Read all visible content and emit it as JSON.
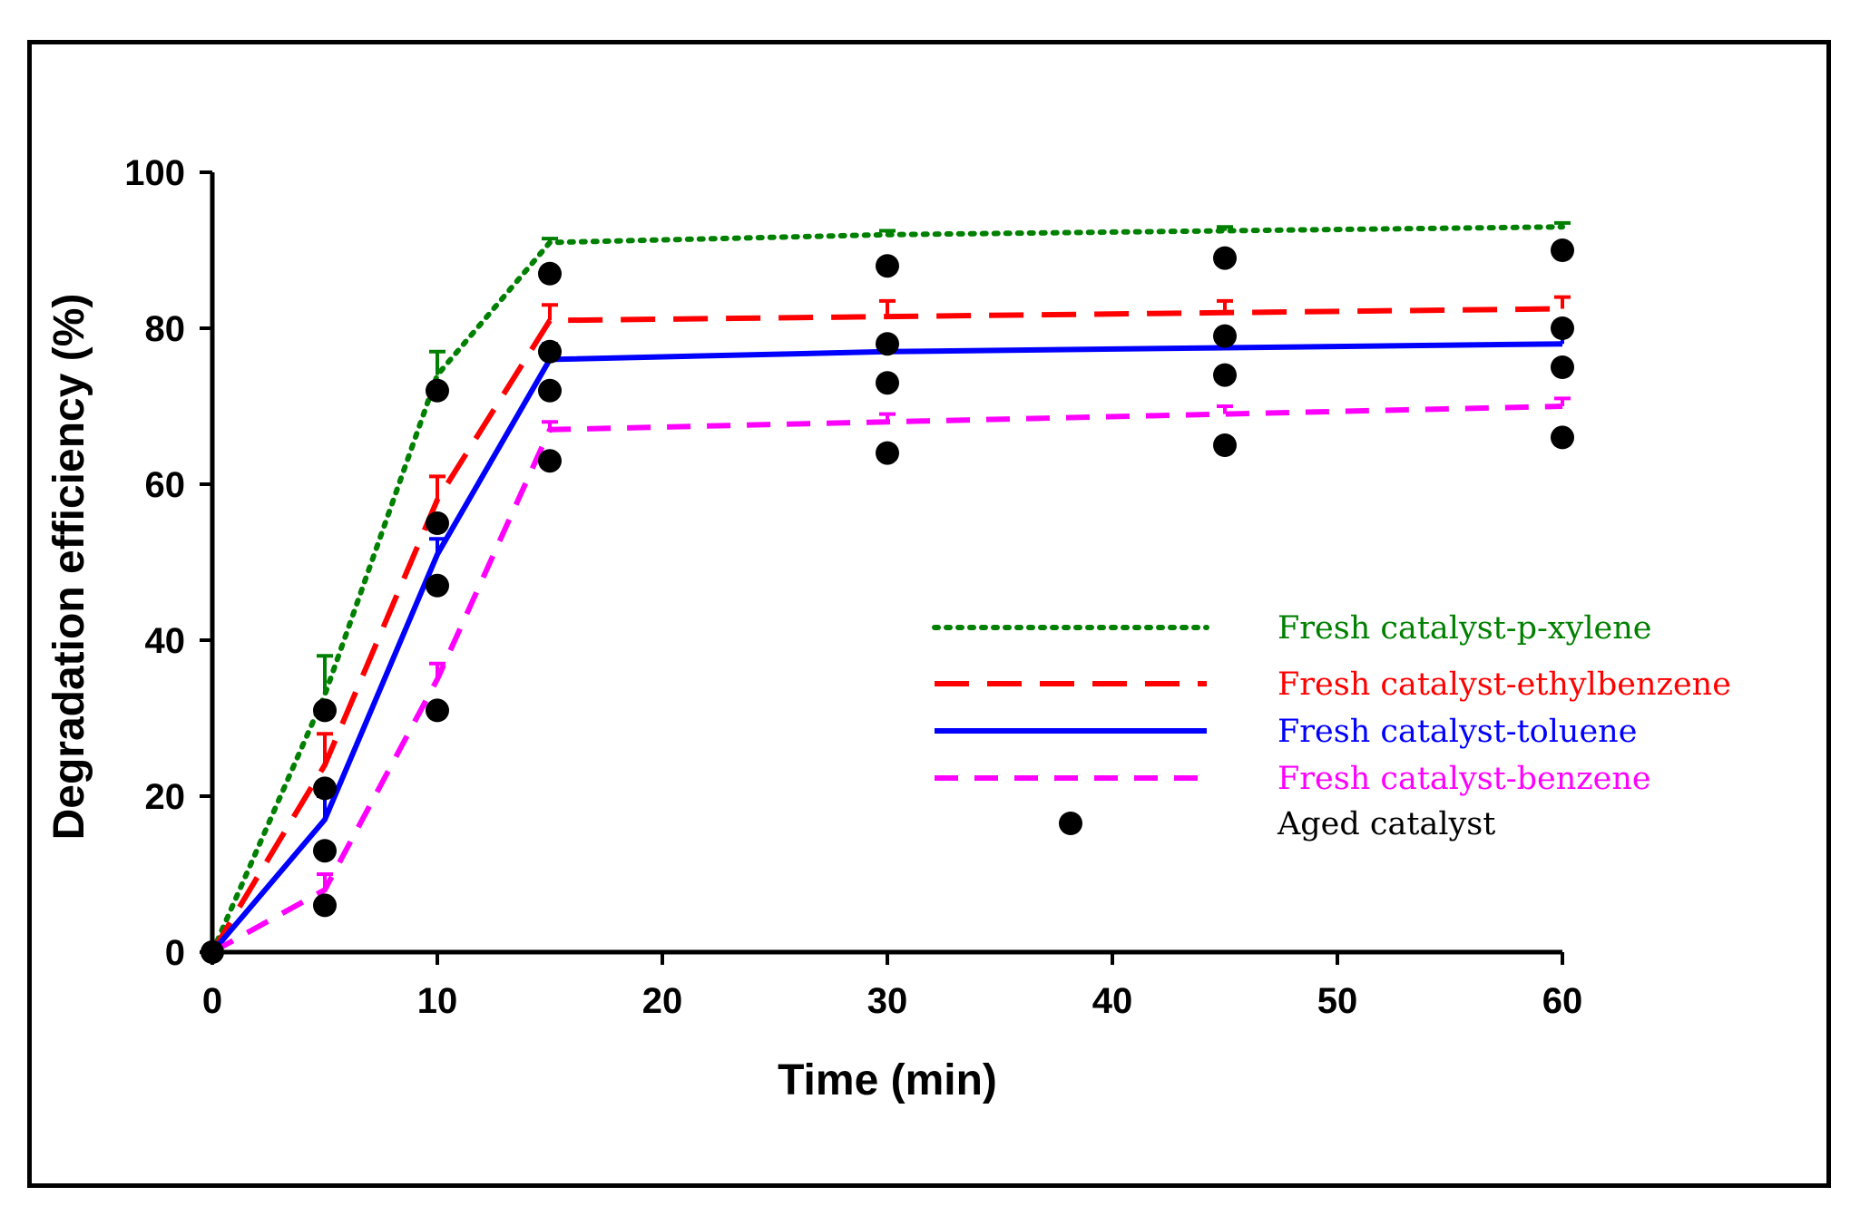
{
  "chart_data": {
    "type": "line",
    "xlabel": "Time (min)",
    "ylabel": "Degradation efficiency (%)",
    "xlim": [
      0,
      60
    ],
    "ylim": [
      0,
      100
    ],
    "x_ticks": [
      0,
      10,
      20,
      30,
      40,
      50,
      60
    ],
    "y_ticks": [
      0,
      20,
      40,
      60,
      80,
      100
    ],
    "grid": false,
    "legend_position": "right-center",
    "x": [
      0,
      5,
      10,
      15,
      30,
      45,
      60
    ],
    "series": [
      {
        "name": "Fresh catalyst-p-xylene",
        "color": "#008000",
        "style": "dotted",
        "values": [
          0,
          33,
          74,
          91,
          92,
          92.5,
          93
        ],
        "error": [
          0,
          5,
          3,
          0.5,
          0.5,
          0.5,
          0.5
        ]
      },
      {
        "name": "Fresh catalyst-ethylbenzene",
        "color": "#ff0000",
        "style": "long-dash",
        "values": [
          0,
          24,
          58,
          81,
          81.5,
          82,
          82.5
        ],
        "error": [
          0,
          4,
          3,
          2,
          2,
          1.5,
          1.5
        ]
      },
      {
        "name": "Fresh catalyst-toluene",
        "color": "#0000ff",
        "style": "solid",
        "values": [
          0,
          17,
          51,
          76,
          77,
          77.5,
          78
        ],
        "error": [
          0,
          3,
          2,
          2,
          1.5,
          1.5,
          1.5
        ]
      },
      {
        "name": "Fresh catalyst-benzene",
        "color": "#ff00ff",
        "style": "dashed",
        "values": [
          0,
          8,
          35,
          67,
          68,
          69,
          70
        ],
        "error": [
          0,
          2,
          2,
          1,
          1,
          1,
          1
        ]
      }
    ],
    "scatter": {
      "name": "Aged catalyst",
      "color": "#000000",
      "points": [
        [
          0,
          0
        ],
        [
          5,
          31
        ],
        [
          5,
          21
        ],
        [
          5,
          13
        ],
        [
          5,
          6
        ],
        [
          10,
          72
        ],
        [
          10,
          55
        ],
        [
          10,
          47
        ],
        [
          10,
          31
        ],
        [
          15,
          87
        ],
        [
          15,
          77
        ],
        [
          15,
          72
        ],
        [
          15,
          63
        ],
        [
          30,
          88
        ],
        [
          30,
          78
        ],
        [
          30,
          73
        ],
        [
          30,
          64
        ],
        [
          45,
          89
        ],
        [
          45,
          79
        ],
        [
          45,
          74
        ],
        [
          45,
          65
        ],
        [
          60,
          90
        ],
        [
          60,
          80
        ],
        [
          60,
          75
        ],
        [
          60,
          66
        ]
      ]
    }
  }
}
